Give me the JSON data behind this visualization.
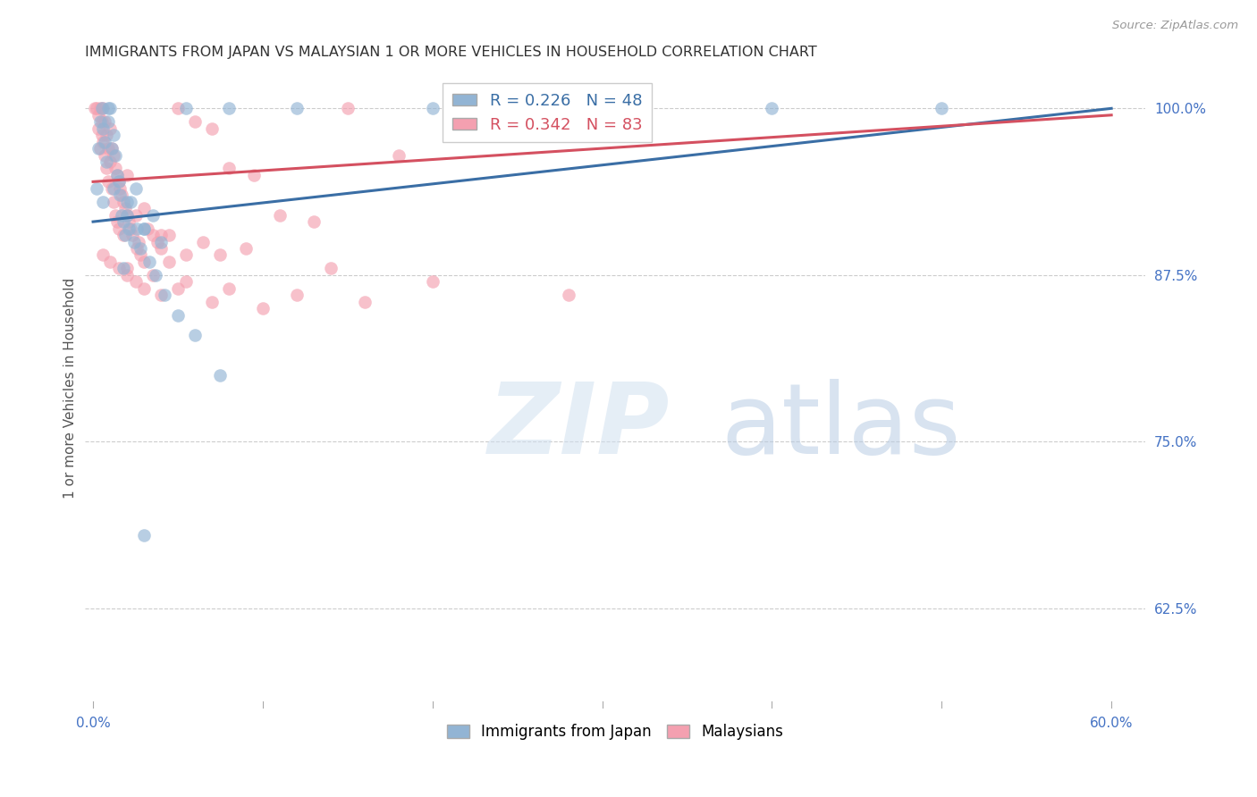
{
  "title": "IMMIGRANTS FROM JAPAN VS MALAYSIAN 1 OR MORE VEHICLES IN HOUSEHOLD CORRELATION CHART",
  "source": "Source: ZipAtlas.com",
  "ylabel": "1 or more Vehicles in Household",
  "xlim": [
    -0.5,
    62
  ],
  "ylim": [
    55,
    103
  ],
  "yticks": [
    62.5,
    75.0,
    87.5,
    100.0
  ],
  "ytick_labels": [
    "62.5%",
    "75.0%",
    "87.5%",
    "100.0%"
  ],
  "xticks": [
    0.0,
    10.0,
    20.0,
    30.0,
    40.0,
    50.0,
    60.0
  ],
  "xtick_labels": [
    "0.0%",
    "",
    "",
    "",
    "",
    "",
    "60.0%"
  ],
  "legend_japan": "Immigrants from Japan",
  "legend_malaysian": "Malaysians",
  "r_japan": 0.226,
  "n_japan": 48,
  "r_malaysian": 0.342,
  "n_malaysian": 83,
  "color_japan": "#92b4d4",
  "color_malaysian": "#f4a0b0",
  "trendline_color_japan": "#3a6ea5",
  "trendline_color_malaysian": "#d45060",
  "watermark_zip": "ZIP",
  "watermark_atlas": "atlas",
  "watermark_color_zip": "#c8d8f0",
  "watermark_color_atlas": "#a0b8d8",
  "japan_x": [
    0.2,
    0.3,
    0.4,
    0.5,
    0.6,
    0.7,
    0.8,
    0.9,
    1.0,
    1.1,
    1.2,
    1.3,
    1.4,
    1.5,
    1.6,
    1.7,
    1.8,
    1.9,
    2.0,
    2.1,
    2.2,
    2.4,
    2.6,
    2.8,
    3.0,
    3.3,
    3.7,
    4.2,
    5.0,
    6.0,
    7.5,
    4.0,
    3.5,
    2.5,
    1.8,
    0.9,
    0.6,
    1.2,
    2.0,
    3.0,
    5.5,
    8.0,
    12.0,
    20.0,
    30.0,
    40.0,
    50.0,
    3.0
  ],
  "japan_y": [
    94.0,
    97.0,
    99.0,
    100.0,
    98.5,
    97.5,
    96.0,
    99.0,
    100.0,
    97.0,
    98.0,
    96.5,
    95.0,
    94.5,
    93.5,
    92.0,
    91.5,
    90.5,
    92.0,
    91.0,
    93.0,
    90.0,
    91.0,
    89.5,
    91.0,
    88.5,
    87.5,
    86.0,
    84.5,
    83.0,
    80.0,
    90.0,
    92.0,
    94.0,
    88.0,
    100.0,
    93.0,
    94.0,
    93.0,
    91.0,
    100.0,
    100.0,
    100.0,
    100.0,
    100.0,
    100.0,
    100.0,
    68.0
  ],
  "malaysian_x": [
    0.1,
    0.2,
    0.3,
    0.3,
    0.4,
    0.4,
    0.5,
    0.5,
    0.6,
    0.6,
    0.7,
    0.7,
    0.8,
    0.8,
    0.9,
    0.9,
    1.0,
    1.0,
    1.1,
    1.1,
    1.2,
    1.2,
    1.3,
    1.3,
    1.4,
    1.4,
    1.5,
    1.5,
    1.6,
    1.7,
    1.8,
    1.8,
    1.9,
    2.0,
    2.0,
    2.1,
    2.2,
    2.3,
    2.5,
    2.6,
    2.7,
    2.8,
    3.0,
    3.0,
    3.2,
    3.5,
    3.8,
    4.0,
    4.5,
    5.0,
    5.5,
    6.0,
    7.0,
    8.0,
    9.5,
    11.0,
    13.0,
    15.0,
    18.0,
    0.6,
    1.0,
    1.5,
    2.0,
    2.5,
    3.0,
    4.0,
    5.0,
    7.0,
    10.0,
    2.0,
    3.5,
    5.5,
    8.0,
    12.0,
    16.0,
    4.5,
    6.5,
    9.0,
    14.0,
    20.0,
    28.0,
    4.0,
    7.5
  ],
  "malaysian_y": [
    100.0,
    100.0,
    99.5,
    98.5,
    100.0,
    97.0,
    99.0,
    98.0,
    100.0,
    97.5,
    99.0,
    96.5,
    98.0,
    95.5,
    97.0,
    94.5,
    98.5,
    96.0,
    97.0,
    94.0,
    96.5,
    93.0,
    95.5,
    92.0,
    95.0,
    91.5,
    94.5,
    91.0,
    94.0,
    93.5,
    93.0,
    90.5,
    92.5,
    95.0,
    92.0,
    91.5,
    91.0,
    90.5,
    92.0,
    89.5,
    90.0,
    89.0,
    92.5,
    88.5,
    91.0,
    90.5,
    90.0,
    89.5,
    88.5,
    100.0,
    89.0,
    99.0,
    98.5,
    95.5,
    95.0,
    92.0,
    91.5,
    100.0,
    96.5,
    89.0,
    88.5,
    88.0,
    87.5,
    87.0,
    86.5,
    86.0,
    86.5,
    85.5,
    85.0,
    88.0,
    87.5,
    87.0,
    86.5,
    86.0,
    85.5,
    90.5,
    90.0,
    89.5,
    88.0,
    87.0,
    86.0,
    90.5,
    89.0
  ],
  "japan_trendline": [
    91.5,
    100.0
  ],
  "malaysian_trendline": [
    94.5,
    99.5
  ],
  "trendline_x": [
    0,
    60
  ]
}
